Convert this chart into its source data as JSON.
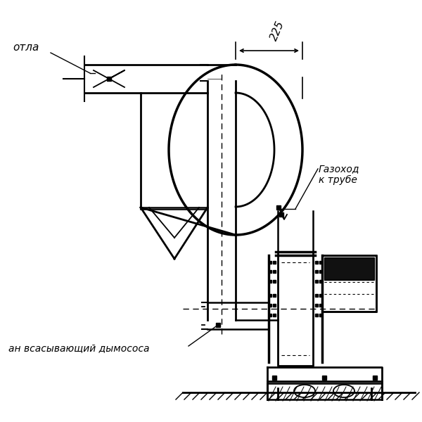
{
  "background_color": "#ffffff",
  "label_otla": "отла",
  "label_gazokhod": "Газоход\nк трубе",
  "label_vsan": "ан всасывающий дымососа",
  "label_225": "225"
}
